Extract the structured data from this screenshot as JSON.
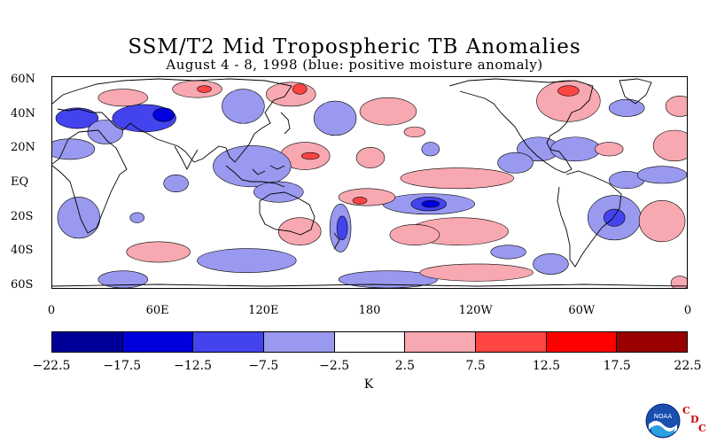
{
  "header": {
    "title": "SSM/T2 Mid Tropospheric TB Anomalies",
    "subtitle": "August 4 - 8, 1998 (blue: positive moisture anomaly)"
  },
  "map": {
    "lat_labels": [
      "60N",
      "40N",
      "20N",
      "EQ",
      "20S",
      "40S",
      "60S"
    ],
    "lat_values": [
      60,
      40,
      20,
      0,
      -20,
      -40,
      -60
    ],
    "lon_labels": [
      "0",
      "60E",
      "120E",
      "180",
      "120W",
      "60W",
      "0"
    ],
    "lon_values": [
      0,
      60,
      120,
      180,
      240,
      300,
      360
    ],
    "lat_range": [
      -62,
      62
    ],
    "lon_range": [
      0,
      360
    ],
    "anomaly_regions": [
      {
        "lon": 14,
        "lat": 38,
        "rx": 12,
        "ry": 6,
        "level": -2
      },
      {
        "lon": 30,
        "lat": 30,
        "rx": 10,
        "ry": 7,
        "level": -1
      },
      {
        "lon": 52,
        "lat": 38,
        "rx": 18,
        "ry": 8,
        "level": -2
      },
      {
        "lon": 63,
        "lat": 40,
        "rx": 6,
        "ry": 4,
        "level": -3
      },
      {
        "lon": 40,
        "lat": 50,
        "rx": 14,
        "ry": 5,
        "level": 1
      },
      {
        "lon": 10,
        "lat": 20,
        "rx": 14,
        "ry": 6,
        "level": -1
      },
      {
        "lon": 82,
        "lat": 55,
        "rx": 14,
        "ry": 5,
        "level": 1
      },
      {
        "lon": 86,
        "lat": 55,
        "rx": 4,
        "ry": 2,
        "level": 2
      },
      {
        "lon": 108,
        "lat": 45,
        "rx": 12,
        "ry": 10,
        "level": -1
      },
      {
        "lon": 135,
        "lat": 52,
        "rx": 14,
        "ry": 7,
        "level": 1
      },
      {
        "lon": 140,
        "lat": 55,
        "rx": 4,
        "ry": 3,
        "level": 2
      },
      {
        "lon": 160,
        "lat": 38,
        "rx": 12,
        "ry": 10,
        "level": -1
      },
      {
        "lon": 190,
        "lat": 42,
        "rx": 16,
        "ry": 8,
        "level": 1
      },
      {
        "lon": 205,
        "lat": 30,
        "rx": 6,
        "ry": 3,
        "level": 1
      },
      {
        "lon": 214,
        "lat": 20,
        "rx": 5,
        "ry": 4,
        "level": -1
      },
      {
        "lon": 143,
        "lat": 16,
        "rx": 14,
        "ry": 8,
        "level": 1
      },
      {
        "lon": 146,
        "lat": 16,
        "rx": 5,
        "ry": 2,
        "level": 2
      },
      {
        "lon": 113,
        "lat": 10,
        "rx": 22,
        "ry": 12,
        "level": -1
      },
      {
        "lon": 128,
        "lat": -5,
        "rx": 14,
        "ry": 6,
        "level": -1
      },
      {
        "lon": 70,
        "lat": 0,
        "rx": 7,
        "ry": 5,
        "level": -1
      },
      {
        "lon": 180,
        "lat": 15,
        "rx": 8,
        "ry": 6,
        "level": 1
      },
      {
        "lon": 229,
        "lat": 3,
        "rx": 32,
        "ry": 6,
        "level": 1
      },
      {
        "lon": 213,
        "lat": -12,
        "rx": 26,
        "ry": 6,
        "level": -1
      },
      {
        "lon": 213,
        "lat": -12,
        "rx": 10,
        "ry": 4,
        "level": -2
      },
      {
        "lon": 214,
        "lat": -12,
        "rx": 5,
        "ry": 2,
        "level": -3
      },
      {
        "lon": 178,
        "lat": -8,
        "rx": 16,
        "ry": 5,
        "level": 1
      },
      {
        "lon": 174,
        "lat": -10,
        "rx": 4,
        "ry": 2,
        "level": 2
      },
      {
        "lon": 163,
        "lat": -26,
        "rx": 6,
        "ry": 14,
        "level": -1
      },
      {
        "lon": 164,
        "lat": -26,
        "rx": 3,
        "ry": 7,
        "level": -2
      },
      {
        "lon": 140,
        "lat": -28,
        "rx": 12,
        "ry": 8,
        "level": 1
      },
      {
        "lon": 230,
        "lat": -28,
        "rx": 28,
        "ry": 8,
        "level": 1
      },
      {
        "lon": 205,
        "lat": -30,
        "rx": 14,
        "ry": 6,
        "level": 1
      },
      {
        "lon": 258,
        "lat": -40,
        "rx": 10,
        "ry": 4,
        "level": -1
      },
      {
        "lon": 282,
        "lat": -47,
        "rx": 10,
        "ry": 6,
        "level": -1
      },
      {
        "lon": 318,
        "lat": -20,
        "rx": 15,
        "ry": 13,
        "level": -1
      },
      {
        "lon": 318,
        "lat": -20,
        "rx": 6,
        "ry": 5,
        "level": -2
      },
      {
        "lon": 325,
        "lat": 2,
        "rx": 10,
        "ry": 5,
        "level": -1
      },
      {
        "lon": 345,
        "lat": -22,
        "rx": 13,
        "ry": 12,
        "level": 1
      },
      {
        "lon": 352,
        "lat": 22,
        "rx": 12,
        "ry": 9,
        "level": 1
      },
      {
        "lon": 355,
        "lat": 45,
        "rx": 8,
        "ry": 6,
        "level": 1
      },
      {
        "lon": 325,
        "lat": 44,
        "rx": 10,
        "ry": 5,
        "level": -1
      },
      {
        "lon": 292,
        "lat": 48,
        "rx": 18,
        "ry": 12,
        "level": 1
      },
      {
        "lon": 292,
        "lat": 54,
        "rx": 6,
        "ry": 3,
        "level": 2
      },
      {
        "lon": 275,
        "lat": 20,
        "rx": 12,
        "ry": 7,
        "level": -1
      },
      {
        "lon": 296,
        "lat": 20,
        "rx": 14,
        "ry": 7,
        "level": -1
      },
      {
        "lon": 315,
        "lat": 20,
        "rx": 8,
        "ry": 4,
        "level": 1
      },
      {
        "lon": 262,
        "lat": 12,
        "rx": 10,
        "ry": 6,
        "level": -1
      },
      {
        "lon": 345,
        "lat": 5,
        "rx": 14,
        "ry": 5,
        "level": -1
      },
      {
        "lon": 15,
        "lat": -20,
        "rx": 12,
        "ry": 12,
        "level": -1
      },
      {
        "lon": 48,
        "lat": -20,
        "rx": 4,
        "ry": 3,
        "level": -1
      },
      {
        "lon": 60,
        "lat": -40,
        "rx": 18,
        "ry": 6,
        "level": 1
      },
      {
        "lon": 110,
        "lat": -45,
        "rx": 28,
        "ry": 7,
        "level": -1
      },
      {
        "lon": 40,
        "lat": -56,
        "rx": 14,
        "ry": 5,
        "level": -1
      },
      {
        "lon": 190,
        "lat": -56,
        "rx": 28,
        "ry": 5,
        "level": -1
      },
      {
        "lon": 240,
        "lat": -52,
        "rx": 32,
        "ry": 5,
        "level": 1
      },
      {
        "lon": 355,
        "lat": -58,
        "rx": 5,
        "ry": 4,
        "level": 1
      }
    ]
  },
  "colorbar": {
    "colors": [
      "#000099",
      "#0000dd",
      "#4444ee",
      "#9999f0",
      "#ffffff",
      "#f8a8b0",
      "#ff4444",
      "#ff0000",
      "#990000"
    ],
    "levels": [
      "-22.5",
      "-17.5",
      "-12.5",
      "-7.5",
      "-2.5",
      "2.5",
      "7.5",
      "12.5",
      "17.5",
      "22.5"
    ],
    "unit": "K"
  },
  "logo": {
    "text": "NOAA",
    "letters": [
      "C",
      "D",
      "C"
    ]
  }
}
